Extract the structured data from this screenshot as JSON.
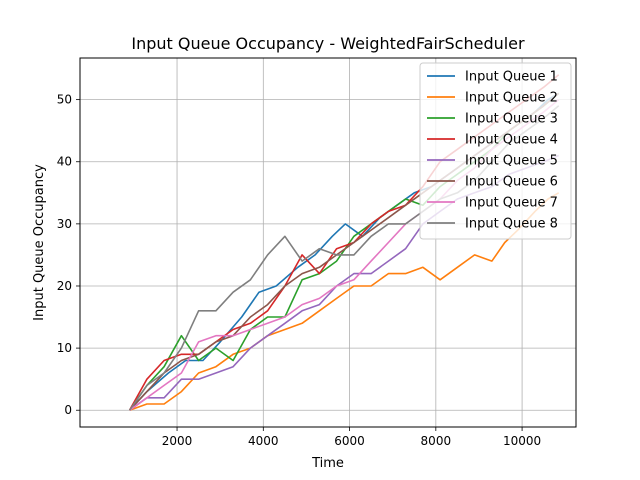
{
  "chart_data": {
    "type": "line",
    "title": "Input Queue Occupancy - WeightedFairScheduler",
    "xlabel": "Time",
    "ylabel": "Input Queue Occupancy",
    "xlim": [
      -250,
      11250
    ],
    "ylim": [
      -2.7,
      56.7
    ],
    "xticks": [
      2000,
      4000,
      6000,
      8000,
      10000
    ],
    "yticks": [
      0,
      10,
      20,
      30,
      40,
      50
    ],
    "xtick_labels": [
      "2000",
      "4000",
      "6000",
      "8000",
      "10000"
    ],
    "ytick_labels": [
      "0",
      "10",
      "20",
      "30",
      "40",
      "50"
    ],
    "grid": true,
    "legend": "top-right",
    "series": [
      {
        "name": "Input Queue 1",
        "color": "#1f77b4",
        "x": [
          900,
          1300,
          1800,
          2200,
          2600,
          3000,
          3500,
          3900,
          4300,
          4800,
          5200,
          5600,
          5900,
          6300,
          6700,
          7100,
          7500,
          7900,
          8300,
          8700,
          9100,
          9500,
          9900,
          10300,
          10600,
          10850
        ],
        "y": [
          0,
          3,
          6,
          8,
          8,
          11,
          15,
          19,
          20,
          23,
          25,
          28,
          30,
          28,
          31,
          33,
          35,
          36,
          38,
          40,
          42,
          44,
          46,
          48,
          50,
          51
        ]
      },
      {
        "name": "Input Queue 2",
        "color": "#ff7f0e",
        "x": [
          900,
          1300,
          1700,
          2100,
          2500,
          2900,
          3300,
          3700,
          4100,
          4500,
          4900,
          5300,
          5700,
          6100,
          6500,
          6900,
          7300,
          7700,
          8100,
          8500,
          8900,
          9300,
          9600,
          9900,
          10300,
          10600,
          10850
        ],
        "y": [
          0,
          1,
          1,
          3,
          6,
          7,
          9,
          10,
          12,
          13,
          14,
          16,
          18,
          20,
          20,
          22,
          22,
          23,
          21,
          23,
          25,
          24,
          27,
          29,
          32,
          34,
          35
        ]
      },
      {
        "name": "Input Queue 3",
        "color": "#2ca02c",
        "x": [
          900,
          1300,
          1700,
          2100,
          2500,
          2900,
          3300,
          3700,
          4100,
          4500,
          4900,
          5300,
          5700,
          6100,
          6500,
          6900,
          7300,
          7700,
          8100,
          8500,
          8900,
          9300,
          9700,
          10100,
          10500,
          10850
        ],
        "y": [
          0,
          4,
          7,
          12,
          8,
          10,
          8,
          13,
          15,
          15,
          21,
          22,
          24,
          28,
          30,
          32,
          34,
          33,
          36,
          38,
          40,
          42,
          45,
          47,
          49,
          51
        ]
      },
      {
        "name": "Input Queue 4",
        "color": "#d62728",
        "x": [
          900,
          1300,
          1700,
          2100,
          2500,
          2900,
          3300,
          3700,
          4100,
          4500,
          4900,
          5300,
          5700,
          6100,
          6500,
          6900,
          7300,
          7700,
          8100,
          8500,
          8900,
          9300,
          9700,
          10100,
          10500,
          10850
        ],
        "y": [
          0,
          5,
          8,
          9,
          9,
          11,
          13,
          14,
          16,
          20,
          25,
          22,
          26,
          27,
          30,
          32,
          33,
          36,
          40,
          42,
          44,
          46,
          48,
          50,
          52,
          54
        ]
      },
      {
        "name": "Input Queue 5",
        "color": "#9467bd",
        "x": [
          900,
          1300,
          1700,
          2100,
          2500,
          2900,
          3300,
          3700,
          4100,
          4500,
          4900,
          5300,
          5700,
          6100,
          6500,
          6900,
          7300,
          7700,
          8100,
          8500,
          8900,
          9300,
          9700,
          10100,
          10500,
          10850
        ],
        "y": [
          0,
          2,
          2,
          5,
          5,
          6,
          7,
          10,
          12,
          14,
          16,
          17,
          20,
          22,
          22,
          24,
          26,
          30,
          32,
          34,
          35,
          36,
          38,
          39,
          40,
          41
        ]
      },
      {
        "name": "Input Queue 6",
        "color": "#8c564b",
        "x": [
          900,
          1300,
          1700,
          2100,
          2500,
          2900,
          3300,
          3700,
          4100,
          4500,
          4900,
          5300,
          5700,
          6100,
          6500,
          6900,
          7300,
          7700,
          8100,
          8500,
          8900,
          9300,
          9700,
          10100,
          10500,
          10850
        ],
        "y": [
          0,
          3,
          6,
          8,
          9,
          11,
          12,
          15,
          17,
          20,
          22,
          23,
          25,
          27,
          29,
          31,
          33,
          35,
          37,
          39,
          41,
          43,
          45,
          47,
          49,
          51
        ]
      },
      {
        "name": "Input Queue 7",
        "color": "#e377c2",
        "x": [
          900,
          1300,
          1700,
          2100,
          2500,
          2900,
          3300,
          3700,
          4100,
          4500,
          4900,
          5300,
          5700,
          6100,
          6500,
          6900,
          7300,
          7700,
          8100,
          8500,
          8900,
          9300,
          9700,
          10100,
          10500,
          10850
        ],
        "y": [
          0,
          2,
          4,
          6,
          11,
          12,
          12,
          13,
          14,
          15,
          17,
          18,
          20,
          21,
          24,
          27,
          30,
          32,
          34,
          37,
          39,
          42,
          44,
          46,
          48,
          50
        ]
      },
      {
        "name": "Input Queue 8",
        "color": "#7f7f7f",
        "x": [
          900,
          1300,
          1700,
          2100,
          2500,
          2900,
          3300,
          3700,
          4100,
          4500,
          4900,
          5300,
          5700,
          6100,
          6500,
          6900,
          7300,
          7700,
          8100,
          8500,
          8900,
          9300,
          9700,
          10100,
          10500,
          10850
        ],
        "y": [
          0,
          4,
          6,
          10,
          16,
          16,
          19,
          21,
          25,
          28,
          24,
          26,
          25,
          25,
          28,
          30,
          30,
          32,
          34,
          35,
          37,
          40,
          43,
          45,
          47,
          49
        ]
      }
    ]
  }
}
